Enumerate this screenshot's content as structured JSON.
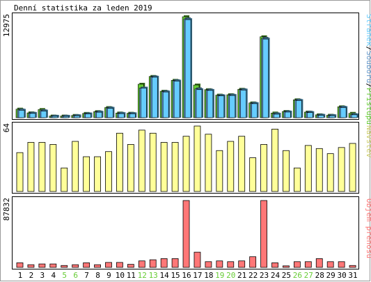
{
  "title": "Denní statistika za leden 2019",
  "colors": {
    "page_bg": "#ffffff",
    "frame": "#000000",
    "hits": "#66cc33",
    "files": "#6699cc",
    "pages": "#66ccff",
    "visits": "#ffff99",
    "volume": "#ff7777",
    "weekend_label": "#66cc33",
    "weekday_label": "#000000"
  },
  "legends": {
    "top": [
      {
        "text": "Stránek",
        "color": "#66ccff"
      },
      {
        "text": "/",
        "color": "#000000"
      },
      {
        "text": "Souborů",
        "color": "#6699cc"
      },
      {
        "text": "/",
        "color": "#000000"
      },
      {
        "text": "Přístupů",
        "color": "#66cc33"
      }
    ],
    "middle": {
      "text": "Návštěv",
      "color": "#cccc66"
    },
    "bottom": {
      "text": "Objem přenosu",
      "color": "#ff7777"
    }
  },
  "chart_data": {
    "type": "bar",
    "title": "Denní statistika za leden 2019",
    "categories": [
      "1",
      "2",
      "3",
      "4",
      "5",
      "6",
      "7",
      "8",
      "9",
      "10",
      "11",
      "12",
      "13",
      "14",
      "15",
      "16",
      "17",
      "18",
      "19",
      "20",
      "21",
      "22",
      "23",
      "24",
      "25",
      "26",
      "27",
      "28",
      "29",
      "30",
      "31"
    ],
    "weekend_days": [
      5,
      6,
      12,
      13,
      19,
      20,
      26,
      27
    ],
    "panels": [
      {
        "name": "traffic",
        "max_label": "12975",
        "ymax": 12975,
        "series": [
          {
            "name": "Přístupů",
            "color": "#66cc33",
            "values": [
              1100,
              620,
              1050,
              210,
              210,
              290,
              550,
              780,
              1300,
              600,
              570,
              4300,
              5300,
              3400,
              4800,
              12975,
              4200,
              3600,
              2900,
              2950,
              3650,
              1900,
              10400,
              600,
              800,
              2300,
              720,
              370,
              310,
              1400,
              560
            ]
          },
          {
            "name": "Souborů",
            "color": "#6699cc",
            "values": [
              1000,
              580,
              900,
              190,
              190,
              260,
              500,
              740,
              1250,
              560,
              530,
              3800,
              5250,
              3350,
              4750,
              12700,
              3700,
              3550,
              2850,
              2900,
              3600,
              1850,
              10200,
              500,
              760,
              2250,
              700,
              330,
              280,
              1350,
              400
            ]
          },
          {
            "name": "Stránek",
            "color": "#66ccff",
            "values": [
              950,
              550,
              850,
              180,
              170,
              230,
              480,
              700,
              1200,
              520,
              500,
              3800,
              5200,
              3300,
              4700,
              12600,
              3600,
              3500,
              2800,
              2850,
              3550,
              1800,
              10100,
              450,
              720,
              2200,
              650,
              300,
              250,
              1300,
              370
            ]
          }
        ]
      },
      {
        "name": "visits",
        "max_label": "64",
        "ymax": 64,
        "series": [
          {
            "name": "Návštěv",
            "color": "#ffff99",
            "values": [
              38,
              48,
              48,
              46,
              23,
              49,
              34,
              34,
              39,
              57,
              46,
              60,
              57,
              48,
              48,
              54,
              64,
              56,
              40,
              49,
              54,
              33,
              46,
              61,
              40,
              23,
              45,
              42,
              37,
              43,
              47
            ]
          }
        ]
      },
      {
        "name": "volume",
        "max_label": "87832",
        "ymax": 87832,
        "series": [
          {
            "name": "Objem přenosu",
            "color": "#ff7777",
            "values": [
              6000,
              3500,
              4500,
              4500,
              2500,
              3500,
              6000,
              3500,
              6500,
              6500,
              4000,
              8500,
              10000,
              11500,
              11500,
              87832,
              20000,
              7500,
              8500,
              7500,
              8500,
              14000,
              87832,
              6000,
              2000,
              7500,
              7500,
              11500,
              7500,
              7500,
              2500
            ]
          }
        ]
      }
    ]
  }
}
